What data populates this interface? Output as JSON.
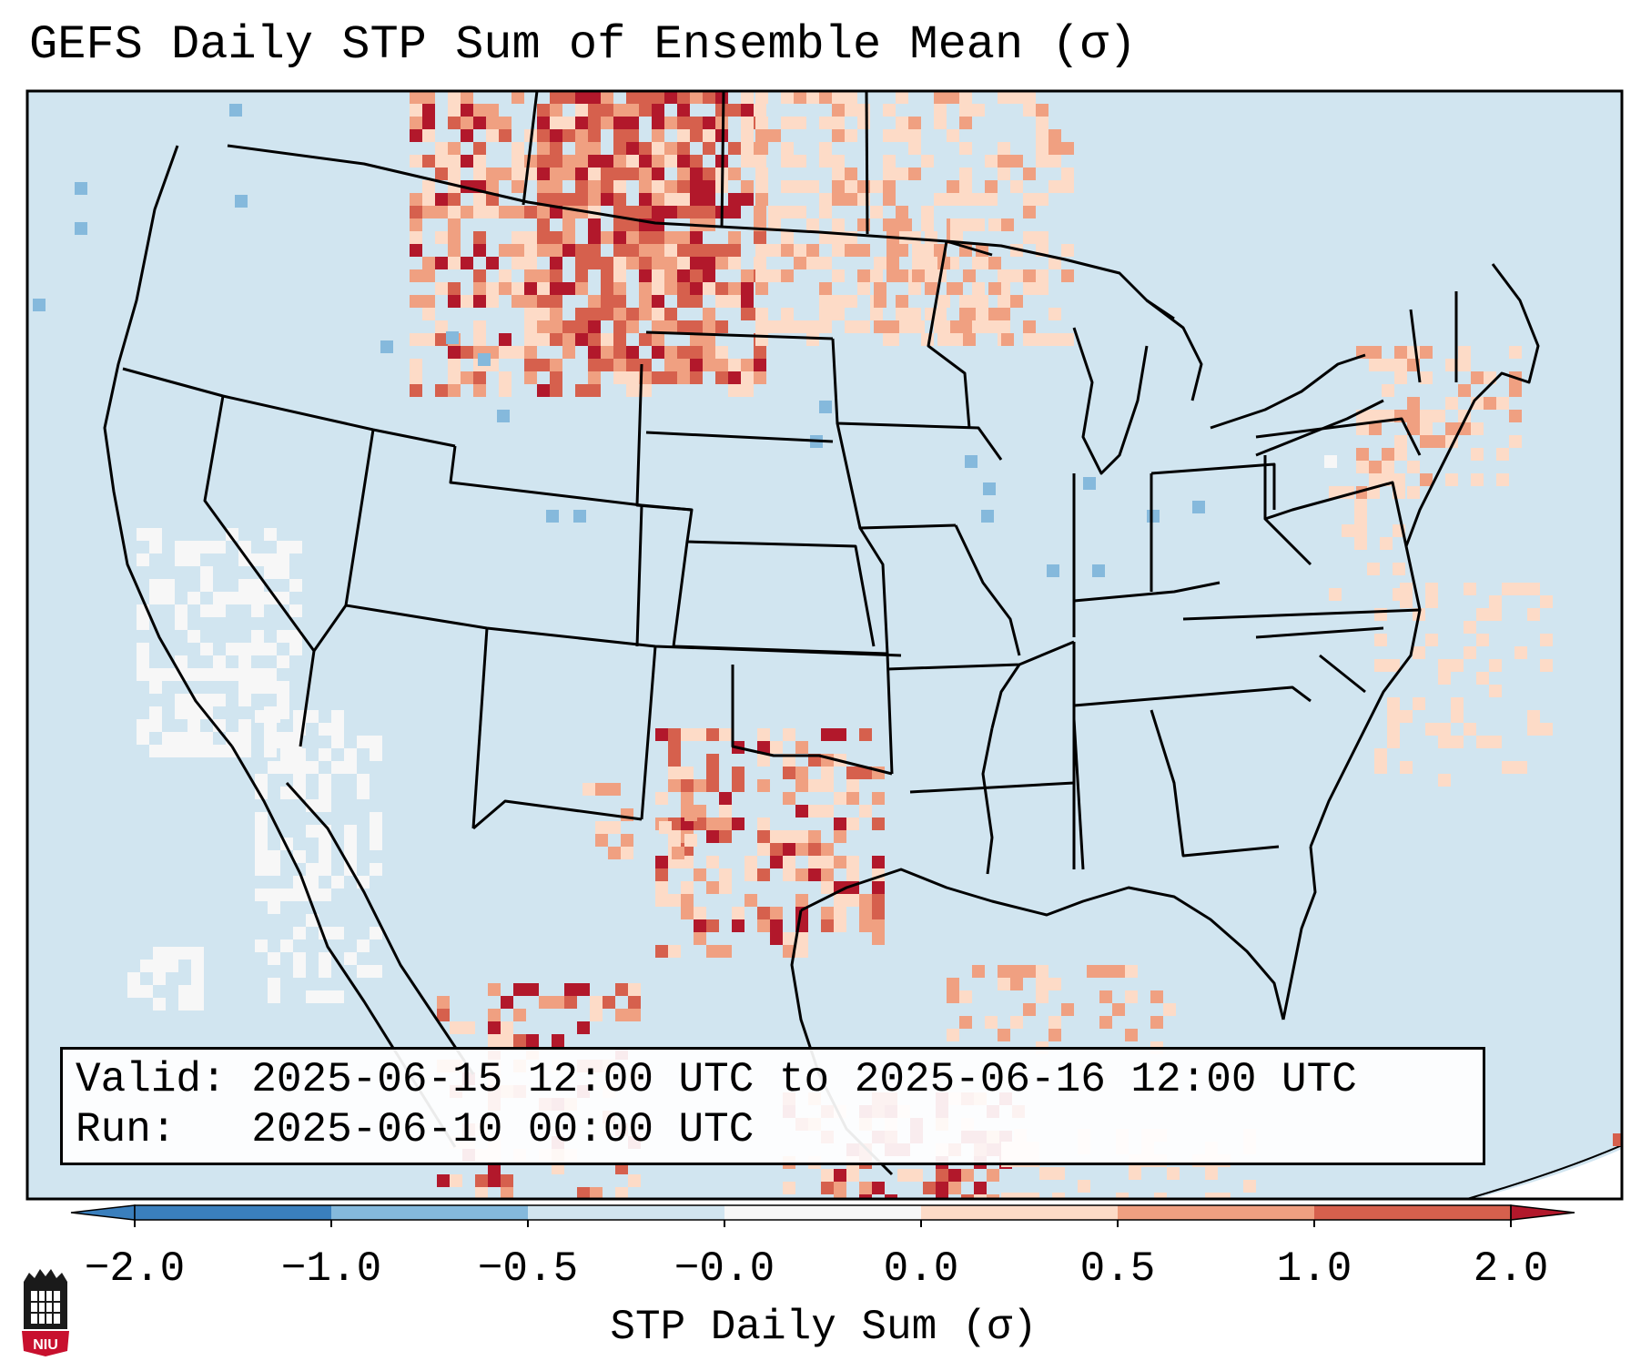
{
  "title": "GEFS Daily STP Sum of Ensemble Mean (σ)",
  "info": {
    "valid_label": "Valid:",
    "valid_value": "2025-06-15 12:00 UTC to 2025-06-16 12:00 UTC",
    "run_label": "Run:",
    "run_value": "2025-06-10 00:00 UTC"
  },
  "colorbar": {
    "label": "STP Daily Sum (σ)",
    "ticks": [
      "−2.0",
      "−1.0",
      "−0.5",
      "−0.0",
      "0.0",
      "0.5",
      "1.0",
      "2.0"
    ],
    "colors": [
      "#3a7fbd",
      "#85b9dc",
      "#d1e5f0",
      "#f7f7f7",
      "#fddbc7",
      "#f0a081",
      "#d6604d",
      "#b2182b"
    ]
  },
  "logo": {
    "text": "NIU"
  },
  "map": {
    "ocean_color": "#d1e5f0",
    "outside_color": "#ffffff",
    "border_color": "#000000"
  }
}
